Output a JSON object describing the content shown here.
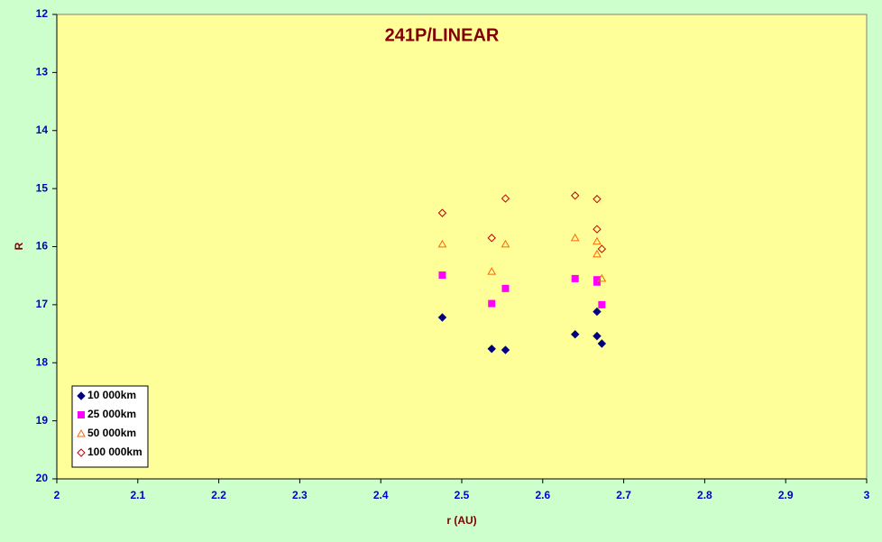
{
  "chart_data": {
    "type": "scatter",
    "title": "241P/LINEAR",
    "x_label": "r (AU)",
    "y_label": "R",
    "xlim": [
      2,
      3
    ],
    "xticks": [
      2,
      2.1,
      2.2,
      2.3,
      2.4,
      2.5,
      2.6,
      2.7,
      2.8,
      2.9,
      3
    ],
    "ylim": [
      12,
      20
    ],
    "yticks": [
      12,
      13,
      14,
      15,
      16,
      17,
      18,
      19,
      20
    ],
    "y_inverted": true,
    "legend": "bottom-left",
    "series": [
      {
        "name": "10 000km",
        "color": "#000080",
        "marker": "diamond",
        "filled": true,
        "x": [
          2.476,
          2.537,
          2.554,
          2.64,
          2.667,
          2.667,
          2.673
        ],
        "values": [
          17.22,
          17.76,
          17.78,
          17.51,
          17.54,
          17.12,
          17.67
        ]
      },
      {
        "name": "25 000km",
        "color": "#ff00ff",
        "marker": "square",
        "filled": true,
        "x": [
          2.476,
          2.537,
          2.554,
          2.64,
          2.667,
          2.667,
          2.673
        ],
        "values": [
          16.49,
          16.98,
          16.72,
          16.55,
          16.57,
          16.61,
          17.0
        ]
      },
      {
        "name": "50 000km",
        "color": "#ff6600",
        "marker": "triangle",
        "filled": false,
        "x": [
          2.476,
          2.537,
          2.554,
          2.64,
          2.667,
          2.667,
          2.673
        ],
        "values": [
          15.96,
          16.43,
          15.96,
          15.85,
          15.91,
          16.13,
          16.55
        ]
      },
      {
        "name": "100 000km",
        "color": "#c00000",
        "marker": "diamond",
        "filled": false,
        "x": [
          2.476,
          2.537,
          2.554,
          2.64,
          2.667,
          2.667,
          2.673
        ],
        "values": [
          15.42,
          15.85,
          15.17,
          15.12,
          15.18,
          15.7,
          16.04
        ]
      }
    ]
  }
}
